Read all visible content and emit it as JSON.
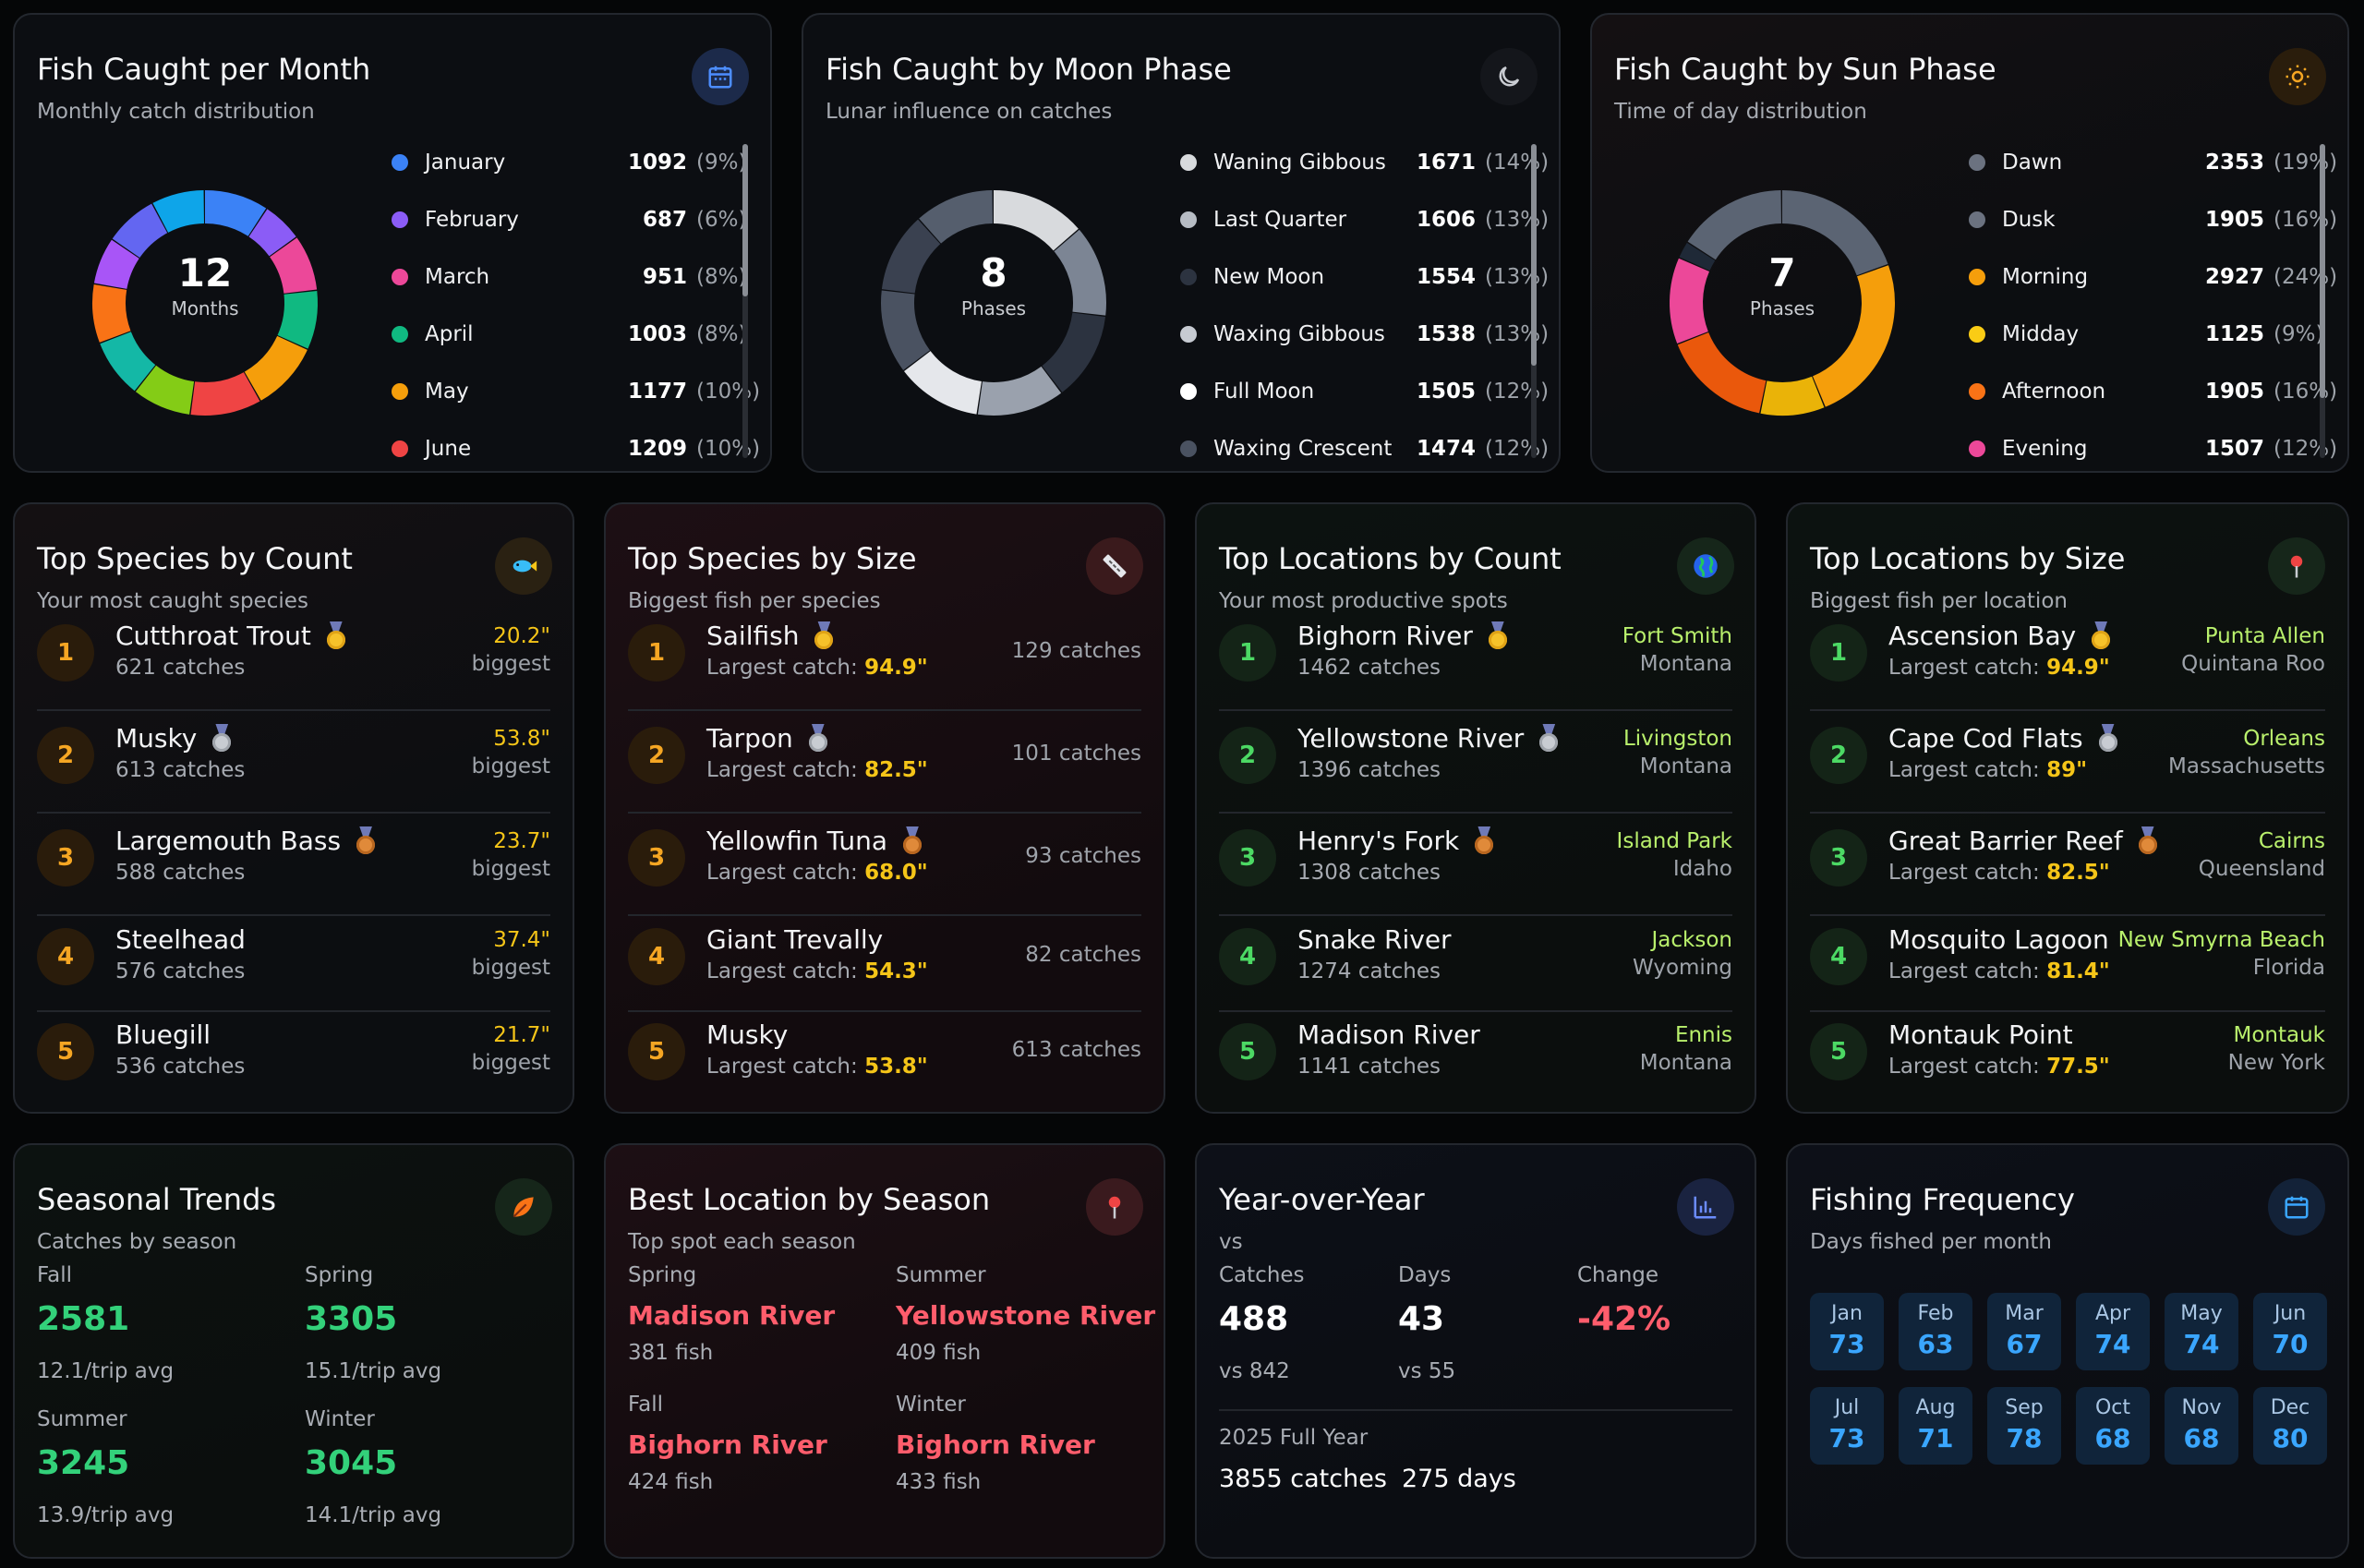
{
  "month_card": {
    "title": "Fish Caught per Month",
    "subtitle": "Monthly catch distribution",
    "icon": "calendar-icon",
    "center_num": "12",
    "center_lbl": "Months",
    "items": [
      {
        "name": "January",
        "value": "1092",
        "pct": "(9%)",
        "color": "#3b82f6"
      },
      {
        "name": "February",
        "value": "687",
        "pct": "(6%)",
        "color": "#8b5cf6"
      },
      {
        "name": "March",
        "value": "951",
        "pct": "(8%)",
        "color": "#ec4899"
      },
      {
        "name": "April",
        "value": "1003",
        "pct": "(8%)",
        "color": "#10b981"
      },
      {
        "name": "May",
        "value": "1177",
        "pct": "(10%)",
        "color": "#f59e0b"
      },
      {
        "name": "June",
        "value": "1209",
        "pct": "(10%)",
        "color": "#ef4444"
      }
    ]
  },
  "moon_card": {
    "title": "Fish Caught by Moon Phase",
    "subtitle": "Lunar influence on catches",
    "icon": "moon-icon",
    "center_num": "8",
    "center_lbl": "Phases",
    "items": [
      {
        "name": "Waning Gibbous",
        "value": "1671",
        "pct": "(14%)",
        "color": "#d8dadd"
      },
      {
        "name": "Last Quarter",
        "value": "1606",
        "pct": "(13%)",
        "color": "#b7bcc4"
      },
      {
        "name": "New Moon",
        "value": "1554",
        "pct": "(13%)",
        "color": "#2c3340"
      },
      {
        "name": "Waxing Gibbous",
        "value": "1538",
        "pct": "(13%)",
        "color": "#c7cbd2"
      },
      {
        "name": "Full Moon",
        "value": "1505",
        "pct": "(12%)",
        "color": "#ffffff"
      },
      {
        "name": "Waxing Crescent",
        "value": "1474",
        "pct": "(12%)",
        "color": "#4a5261"
      }
    ]
  },
  "sun_card": {
    "title": "Fish Caught by Sun Phase",
    "subtitle": "Time of day distribution",
    "icon": "sun-icon",
    "center_num": "7",
    "center_lbl": "Phases",
    "items": [
      {
        "name": "Dawn",
        "value": "2353",
        "pct": "(19%)",
        "color": "#6b7280"
      },
      {
        "name": "Dusk",
        "value": "1905",
        "pct": "(16%)",
        "color": "#6b7280"
      },
      {
        "name": "Morning",
        "value": "2927",
        "pct": "(24%)",
        "color": "#f59e0b"
      },
      {
        "name": "Midday",
        "value": "1125",
        "pct": "(9%)",
        "color": "#facc15"
      },
      {
        "name": "Afternoon",
        "value": "1905",
        "pct": "(16%)",
        "color": "#f97316"
      },
      {
        "name": "Evening",
        "value": "1507",
        "pct": "(12%)",
        "color": "#ec4899"
      }
    ]
  },
  "species_count": {
    "title": "Top Species by Count",
    "subtitle": "Your most caught species",
    "icon": "fish-icon",
    "rows": [
      {
        "rank": "1",
        "name": "Cutthroat Trout",
        "sub": "621 catches",
        "r1": "20.2\"",
        "r2": "biggest",
        "medal": "gold"
      },
      {
        "rank": "2",
        "name": "Musky",
        "sub": "613 catches",
        "r1": "53.8\"",
        "r2": "biggest",
        "medal": "silver"
      },
      {
        "rank": "3",
        "name": "Largemouth Bass",
        "sub": "588 catches",
        "r1": "23.7\"",
        "r2": "biggest",
        "medal": "bronze"
      },
      {
        "rank": "4",
        "name": "Steelhead",
        "sub": "576 catches",
        "r1": "37.4\"",
        "r2": "biggest",
        "medal": ""
      },
      {
        "rank": "5",
        "name": "Bluegill",
        "sub": "536 catches",
        "r1": "21.7\"",
        "r2": "biggest",
        "medal": ""
      }
    ]
  },
  "species_size": {
    "title": "Top Species by Size",
    "subtitle": "Biggest fish per species",
    "icon": "ruler-icon",
    "sub_prefix": "Largest catch:",
    "rows": [
      {
        "rank": "1",
        "name": "Sailfish",
        "size": "94.9\"",
        "catches": "129 catches",
        "medal": "gold"
      },
      {
        "rank": "2",
        "name": "Tarpon",
        "size": "82.5\"",
        "catches": "101 catches",
        "medal": "silver"
      },
      {
        "rank": "3",
        "name": "Yellowfin Tuna",
        "size": "68.0\"",
        "catches": "93 catches",
        "medal": "bronze"
      },
      {
        "rank": "4",
        "name": "Giant Trevally",
        "size": "54.3\"",
        "catches": "82 catches",
        "medal": ""
      },
      {
        "rank": "5",
        "name": "Musky",
        "size": "53.8\"",
        "catches": "613 catches",
        "medal": ""
      }
    ]
  },
  "locations_count": {
    "title": "Top Locations by Count",
    "subtitle": "Your most productive spots",
    "icon": "globe-icon",
    "rows": [
      {
        "rank": "1",
        "name": "Bighorn River",
        "sub": "1462 catches",
        "city": "Fort Smith",
        "state": "Montana",
        "medal": "gold"
      },
      {
        "rank": "2",
        "name": "Yellowstone River",
        "sub": "1396 catches",
        "city": "Livingston",
        "state": "Montana",
        "medal": "silver"
      },
      {
        "rank": "3",
        "name": "Henry's Fork",
        "sub": "1308 catches",
        "city": "Island Park",
        "state": "Idaho",
        "medal": "bronze"
      },
      {
        "rank": "4",
        "name": "Snake River",
        "sub": "1274 catches",
        "city": "Jackson",
        "state": "Wyoming",
        "medal": ""
      },
      {
        "rank": "5",
        "name": "Madison River",
        "sub": "1141 catches",
        "city": "Ennis",
        "state": "Montana",
        "medal": ""
      }
    ]
  },
  "locations_size": {
    "title": "Top Locations by Size",
    "subtitle": "Biggest fish per location",
    "icon": "pin-icon",
    "sub_prefix": "Largest catch:",
    "rows": [
      {
        "rank": "1",
        "name": "Ascension Bay",
        "size": "94.9\"",
        "city": "Punta Allen",
        "state": "Quintana Roo",
        "medal": "gold"
      },
      {
        "rank": "2",
        "name": "Cape Cod Flats",
        "size": "89\"",
        "city": "Orleans",
        "state": "Massachusetts",
        "medal": "silver"
      },
      {
        "rank": "3",
        "name": "Great Barrier Reef",
        "size": "82.5\"",
        "city": "Cairns",
        "state": "Queensland",
        "medal": "bronze"
      },
      {
        "rank": "4",
        "name": "Mosquito Lagoon",
        "size": "81.4\"",
        "city": "New Smyrna Beach",
        "state": "Florida",
        "medal": ""
      },
      {
        "rank": "5",
        "name": "Montauk Point",
        "size": "77.5\"",
        "city": "Montauk",
        "state": "New York",
        "medal": ""
      }
    ]
  },
  "seasonal": {
    "title": "Seasonal Trends",
    "subtitle": "Catches by season",
    "icon": "leaf-icon",
    "items": [
      {
        "season": "Fall",
        "value": "2581",
        "avg": "12.1/trip avg"
      },
      {
        "season": "Spring",
        "value": "3305",
        "avg": "15.1/trip avg"
      },
      {
        "season": "Summer",
        "value": "3245",
        "avg": "13.9/trip avg"
      },
      {
        "season": "Winter",
        "value": "3045",
        "avg": "14.1/trip avg"
      }
    ]
  },
  "best_location": {
    "title": "Best Location by Season",
    "subtitle": "Top spot each season",
    "icon": "pin-icon",
    "items": [
      {
        "season": "Spring",
        "place": "Madison River",
        "fish": "381 fish"
      },
      {
        "season": "Summer",
        "place": "Yellowstone River",
        "fish": "409 fish"
      },
      {
        "season": "Fall",
        "place": "Bighorn River",
        "fish": "424 fish"
      },
      {
        "season": "Winter",
        "place": "Bighorn River",
        "fish": "433 fish"
      }
    ]
  },
  "yoy": {
    "title": "Year-over-Year",
    "subtitle": "vs",
    "icon": "bar-chart-icon",
    "catches_lbl": "Catches",
    "catches": "488",
    "catches_vs": "vs 842",
    "days_lbl": "Days",
    "days": "43",
    "days_vs": "vs 55",
    "change_lbl": "Change",
    "change": "-42%",
    "full_year_lbl": "2025 Full Year",
    "full_catches": "3855 catches",
    "full_days": "275 days"
  },
  "frequency": {
    "title": "Fishing Frequency",
    "subtitle": "Days fished per month",
    "icon": "calendar-icon",
    "months": [
      {
        "m": "Jan",
        "v": "73"
      },
      {
        "m": "Feb",
        "v": "63"
      },
      {
        "m": "Mar",
        "v": "67"
      },
      {
        "m": "Apr",
        "v": "74"
      },
      {
        "m": "May",
        "v": "74"
      },
      {
        "m": "Jun",
        "v": "70"
      },
      {
        "m": "Jul",
        "v": "73"
      },
      {
        "m": "Aug",
        "v": "71"
      },
      {
        "m": "Sep",
        "v": "78"
      },
      {
        "m": "Oct",
        "v": "68"
      },
      {
        "m": "Nov",
        "v": "68"
      },
      {
        "m": "Dec",
        "v": "80"
      }
    ]
  }
}
